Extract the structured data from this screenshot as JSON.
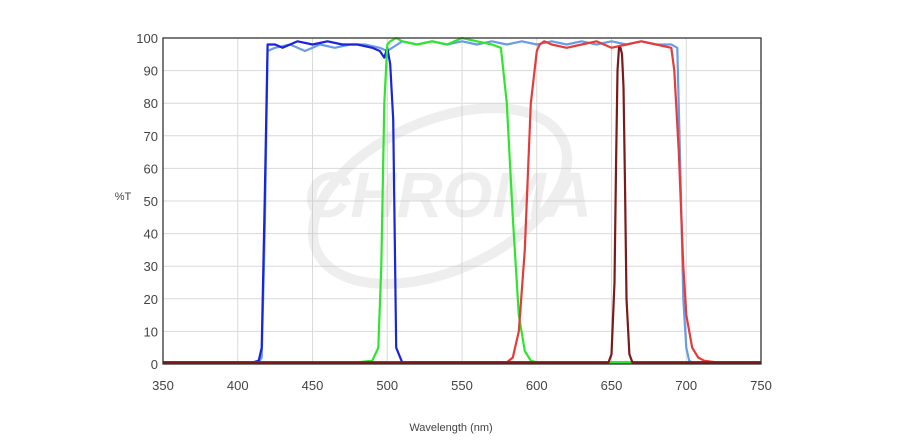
{
  "chart_data": {
    "type": "line",
    "title": "",
    "xlabel": "Wavelength (nm)",
    "ylabel": "%T",
    "xlim": [
      350,
      750
    ],
    "ylim": [
      0,
      100
    ],
    "x_ticks": [
      350,
      400,
      450,
      500,
      550,
      600,
      650,
      700,
      750
    ],
    "y_ticks": [
      0,
      10,
      20,
      30,
      40,
      50,
      60,
      70,
      80,
      90,
      100
    ],
    "grid": true,
    "legend": "none",
    "watermark": "CHROMA",
    "series": [
      {
        "color": "#6a9be8",
        "x": [
          350,
          414,
          416,
          418,
          420,
          425,
          435,
          445,
          455,
          465,
          475,
          485,
          495,
          500,
          510,
          520,
          530,
          540,
          550,
          560,
          570,
          580,
          590,
          600,
          610,
          620,
          630,
          640,
          650,
          660,
          670,
          680,
          690,
          694,
          696,
          698,
          700,
          702,
          704,
          708,
          720,
          750
        ],
        "y": [
          0.5,
          0.5,
          2,
          40,
          96,
          97,
          98,
          96,
          98,
          97,
          98,
          98,
          97,
          96,
          99,
          98,
          99,
          98,
          99,
          98,
          99,
          98,
          99,
          98,
          99,
          98,
          99,
          98,
          99,
          98,
          99,
          98,
          98,
          97,
          60,
          20,
          5,
          1,
          0.5,
          0.5,
          0.5,
          0.5
        ]
      },
      {
        "color": "#1a25d9",
        "x": [
          350,
          410,
          414,
          416,
          418,
          420,
          425,
          430,
          440,
          450,
          460,
          470,
          480,
          490,
          495,
          498,
          500,
          502,
          504,
          505,
          506,
          510,
          520,
          750
        ],
        "y": [
          0.5,
          0.5,
          1,
          5,
          50,
          98,
          98,
          97,
          99,
          98,
          99,
          98,
          98,
          97,
          96,
          94,
          97,
          92,
          75,
          40,
          5,
          0.5,
          0.5,
          0.5
        ]
      },
      {
        "color": "#2ee62e",
        "x": [
          350,
          480,
          490,
          494,
          496,
          498,
          500,
          502,
          506,
          510,
          520,
          530,
          540,
          550,
          560,
          570,
          576,
          580,
          584,
          588,
          592,
          596,
          600,
          605,
          750
        ],
        "y": [
          0.5,
          0.5,
          1,
          5,
          30,
          80,
          98,
          99,
          100,
          99,
          98,
          99,
          98,
          100,
          99,
          98,
          97,
          80,
          45,
          15,
          4,
          1,
          0.5,
          0.5,
          0.5
        ]
      },
      {
        "color": "#e63b3b",
        "x": [
          350,
          580,
          584,
          588,
          592,
          596,
          600,
          602,
          605,
          610,
          620,
          630,
          640,
          650,
          660,
          670,
          680,
          690,
          692,
          695,
          698,
          700,
          704,
          708,
          712,
          720,
          750
        ],
        "y": [
          0.5,
          0.5,
          2,
          10,
          35,
          80,
          96,
          98,
          99,
          98,
          97,
          98,
          99,
          97,
          98,
          99,
          98,
          97,
          90,
          65,
          30,
          15,
          5,
          2,
          1,
          0.5,
          0.5
        ]
      },
      {
        "color": "#7a1a1a",
        "x": [
          350,
          648,
          650,
          652,
          653,
          654,
          655,
          656,
          657,
          658,
          659,
          660,
          662,
          664,
          750
        ],
        "y": [
          0.5,
          0.5,
          3,
          25,
          60,
          90,
          97,
          97,
          95,
          85,
          55,
          20,
          3,
          0.5,
          0.5
        ]
      }
    ]
  }
}
